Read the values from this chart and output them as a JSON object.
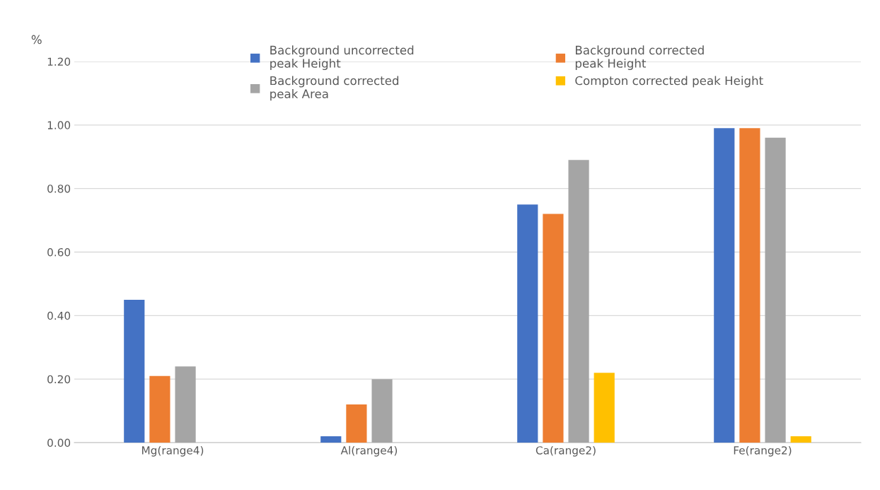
{
  "chart_data": {
    "type": "bar",
    "ylabel": "%",
    "categories": [
      "Mg(range4)",
      "Al(range4)",
      "Ca(range2)",
      "Fe(range2)"
    ],
    "series": [
      {
        "name": "Background uncorrected\npeak Height",
        "color": "#4472c4",
        "values": [
          0.45,
          0.02,
          0.75,
          0.99
        ]
      },
      {
        "name": "Background corrected\npeak Height",
        "color": "#ed7d31",
        "values": [
          0.21,
          0.12,
          0.72,
          0.99
        ]
      },
      {
        "name": "Background corrected\npeak Area",
        "color": "#a5a5a5",
        "values": [
          0.24,
          0.2,
          0.89,
          0.96
        ]
      },
      {
        "name": "Compton corrected peak Height",
        "color": "#ffc000",
        "values": [
          null,
          null,
          0.22,
          0.02
        ]
      }
    ],
    "ylim": [
      0,
      1.2
    ],
    "yticks": [
      {
        "value": 0,
        "label": "0.00"
      },
      {
        "value": 0.2,
        "label": "0.20"
      },
      {
        "value": 0.4,
        "label": "0.40"
      },
      {
        "value": 0.6,
        "label": "0.60"
      },
      {
        "value": 0.8,
        "label": "0.80"
      },
      {
        "value": 1.0,
        "label": "1.00"
      },
      {
        "value": 1.2,
        "label": "1.20"
      }
    ],
    "grid": "y",
    "legend": "top"
  }
}
